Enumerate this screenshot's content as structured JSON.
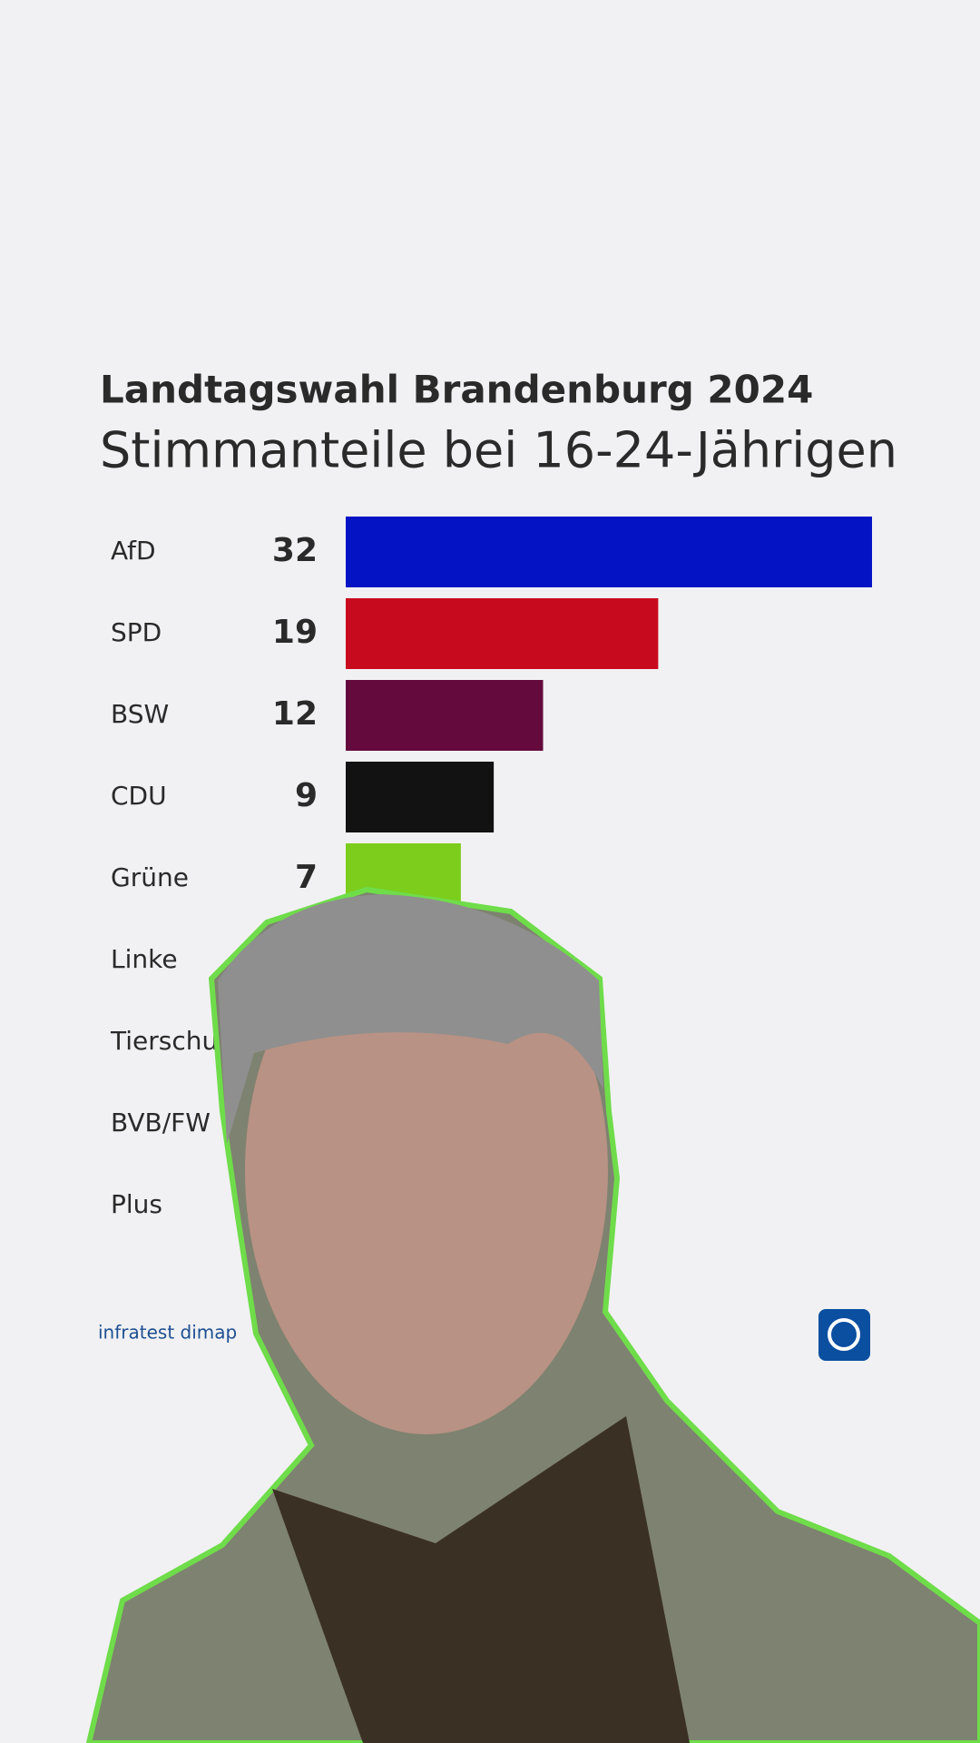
{
  "chart_data": {
    "type": "bar",
    "title": "Landtagswahl Brandenburg 2024",
    "subtitle": "Stimmanteile bei 16-24-Jährigen",
    "categories": [
      "AfD",
      "SPD",
      "BSW",
      "CDU",
      "Grüne",
      "Linke",
      "Tierschutz",
      "BVB/FW",
      "Plus"
    ],
    "values": [
      32,
      19,
      12,
      9,
      7,
      null,
      null,
      null,
      null
    ],
    "colors": [
      "#0414c4",
      "#c80a1e",
      "#640a3c",
      "#121212",
      "#7ccd1c",
      "#be3075",
      "#555555",
      "#f5a000",
      "#888888"
    ],
    "source": "infratest dimap"
  }
}
